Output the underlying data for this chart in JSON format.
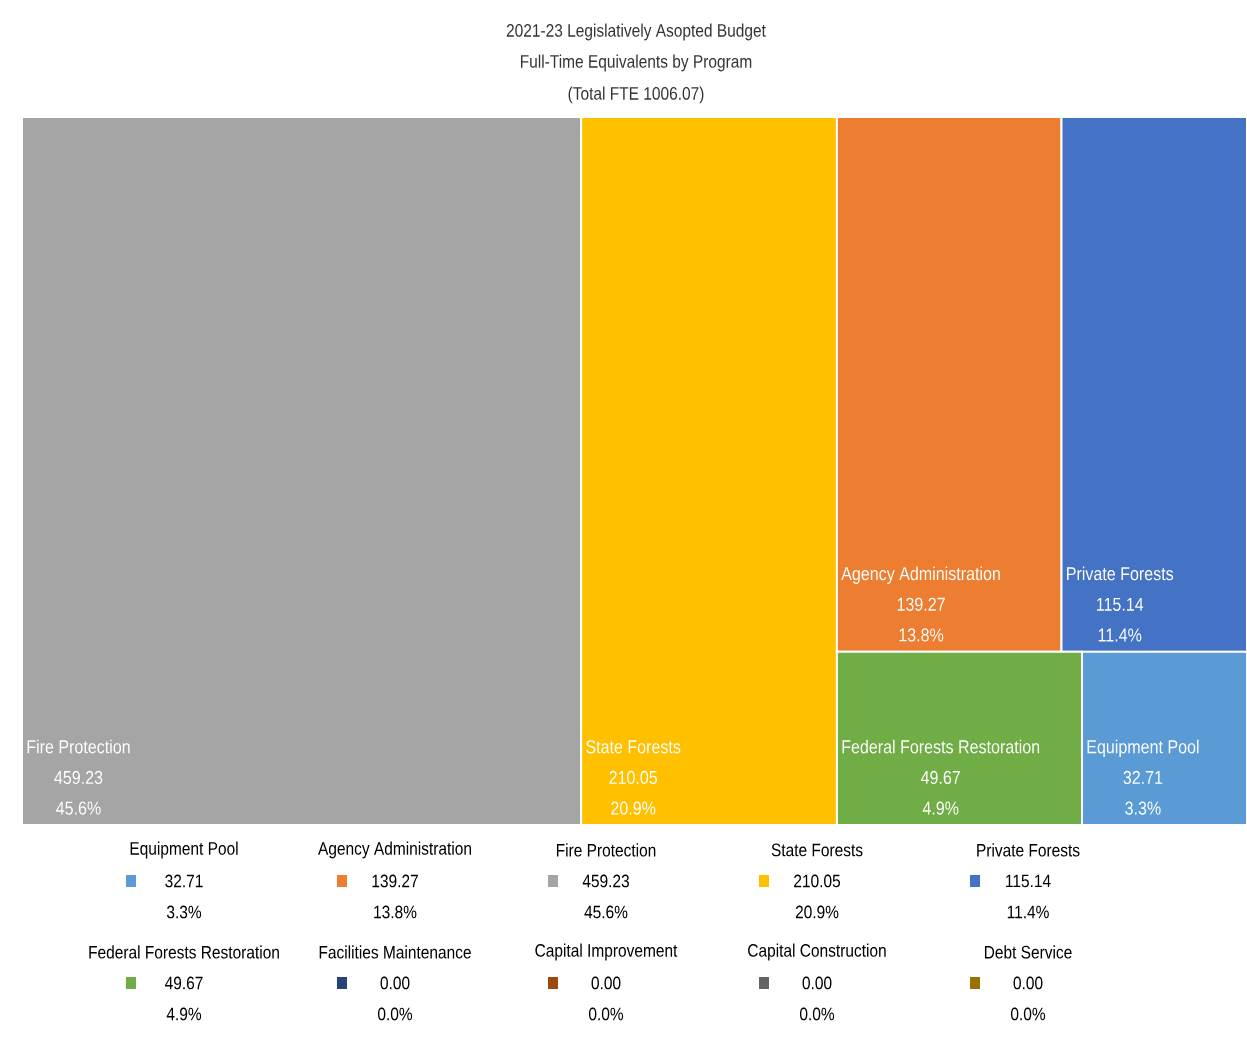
{
  "chart_data": {
    "type": "other",
    "title": "2021-23 Legislatively Asopted Budget",
    "subtitle": "Full-Time Equivalents by Program",
    "annotations": [
      "(Total FTE 1006.07)"
    ],
    "categories": [
      "Equipment Pool",
      "Agency Administration",
      "Fire Protection",
      "State Forests",
      "Private Forests",
      "Federal Forests Restoration",
      "Facilities Maintenance",
      "Capital Improvement",
      "Capital Construction",
      "Debt Service"
    ],
    "series": [
      {
        "colors": [
          "#5b9bd5",
          "#ed7d31",
          "#a5a5a5",
          "#ffc000",
          "#4472c4",
          "#70ad47",
          "#264478",
          "#9e480e",
          "#636363",
          "#997300"
        ],
        "values": [
          32.71,
          139.27,
          459.23,
          210.05,
          115.14,
          49.67,
          0.0,
          0.0,
          0.0,
          0.0
        ],
        "value_labels": [
          "32.71",
          "139.27",
          "459.23",
          "210.05",
          "115.14",
          "49.67",
          "0.00",
          "0.00",
          "0.00",
          "0.00"
        ]
      },
      {
        "values": [
          3.3,
          13.8,
          45.6,
          20.9,
          11.4,
          4.9,
          0.0,
          0.0,
          0.0,
          0.0
        ],
        "value_labels": [
          "3.3%",
          "13.8%",
          "45.6%",
          "20.9%",
          "11.4%",
          "4.9%",
          "0.0%",
          "0.0%",
          "0.0%",
          "0.0%"
        ]
      }
    ]
  }
}
